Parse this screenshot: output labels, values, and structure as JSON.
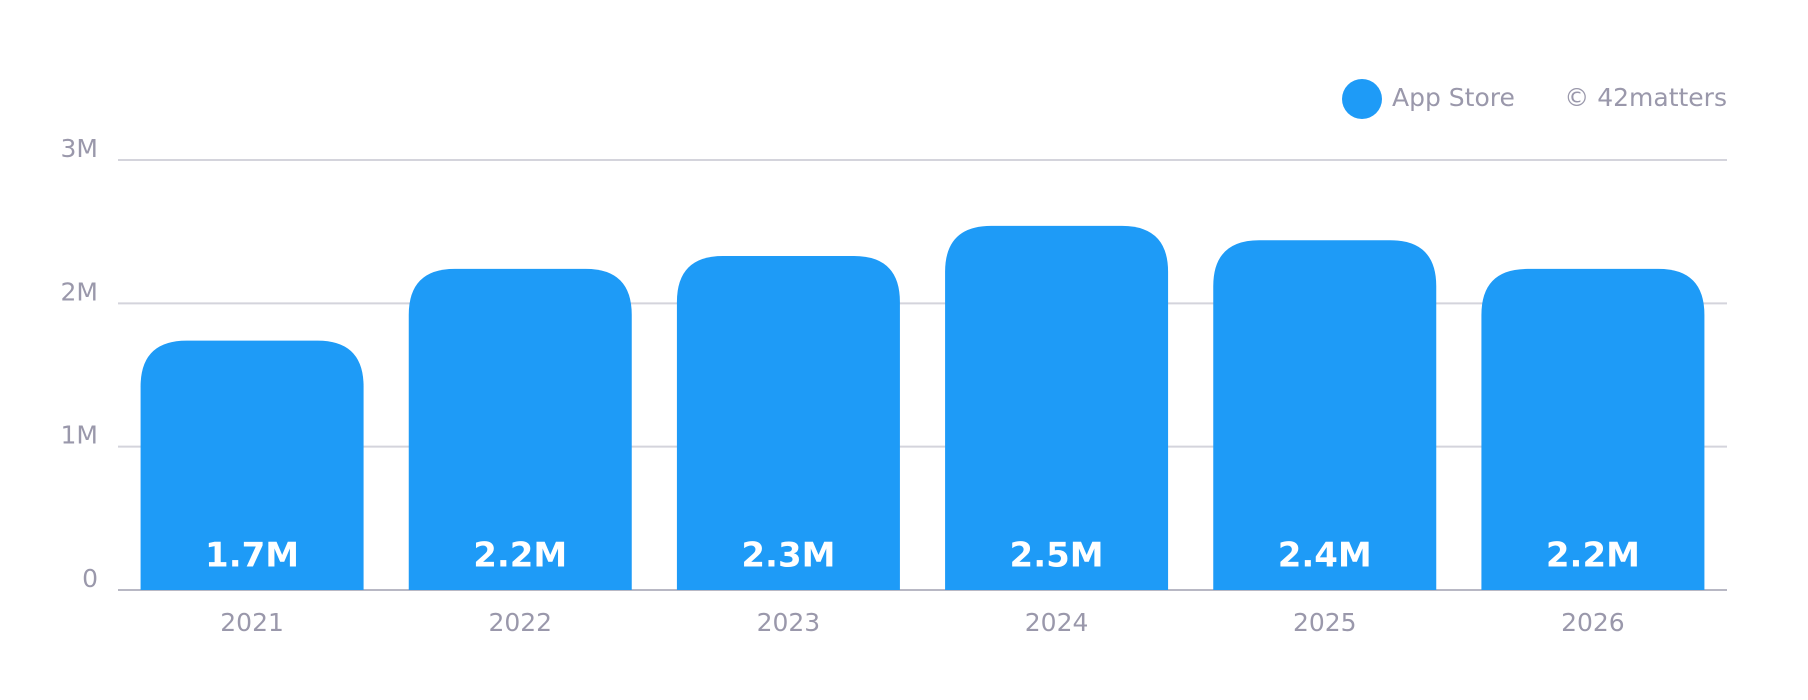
{
  "chart_data": {
    "type": "bar",
    "categories": [
      "2021",
      "2022",
      "2023",
      "2024",
      "2025",
      "2026"
    ],
    "series": [
      {
        "name": "App Store",
        "color": "#1e9bf7",
        "values": [
          1740000,
          2240000,
          2330000,
          2540000,
          2440000,
          2240000
        ],
        "value_labels": [
          "1.7M",
          "2.2M",
          "2.3M",
          "2.5M",
          "2.4M",
          "2.2M"
        ]
      }
    ],
    "ylim": [
      0,
      3000000
    ],
    "yticks": [
      0,
      {
        "value": 1000000,
        "label": "1M"
      },
      {
        "value": 2000000,
        "label": "2M"
      },
      {
        "value": 3000000,
        "label": "3M"
      }
    ],
    "grid": true,
    "legend": "top-right",
    "credit": "© 42matters"
  }
}
